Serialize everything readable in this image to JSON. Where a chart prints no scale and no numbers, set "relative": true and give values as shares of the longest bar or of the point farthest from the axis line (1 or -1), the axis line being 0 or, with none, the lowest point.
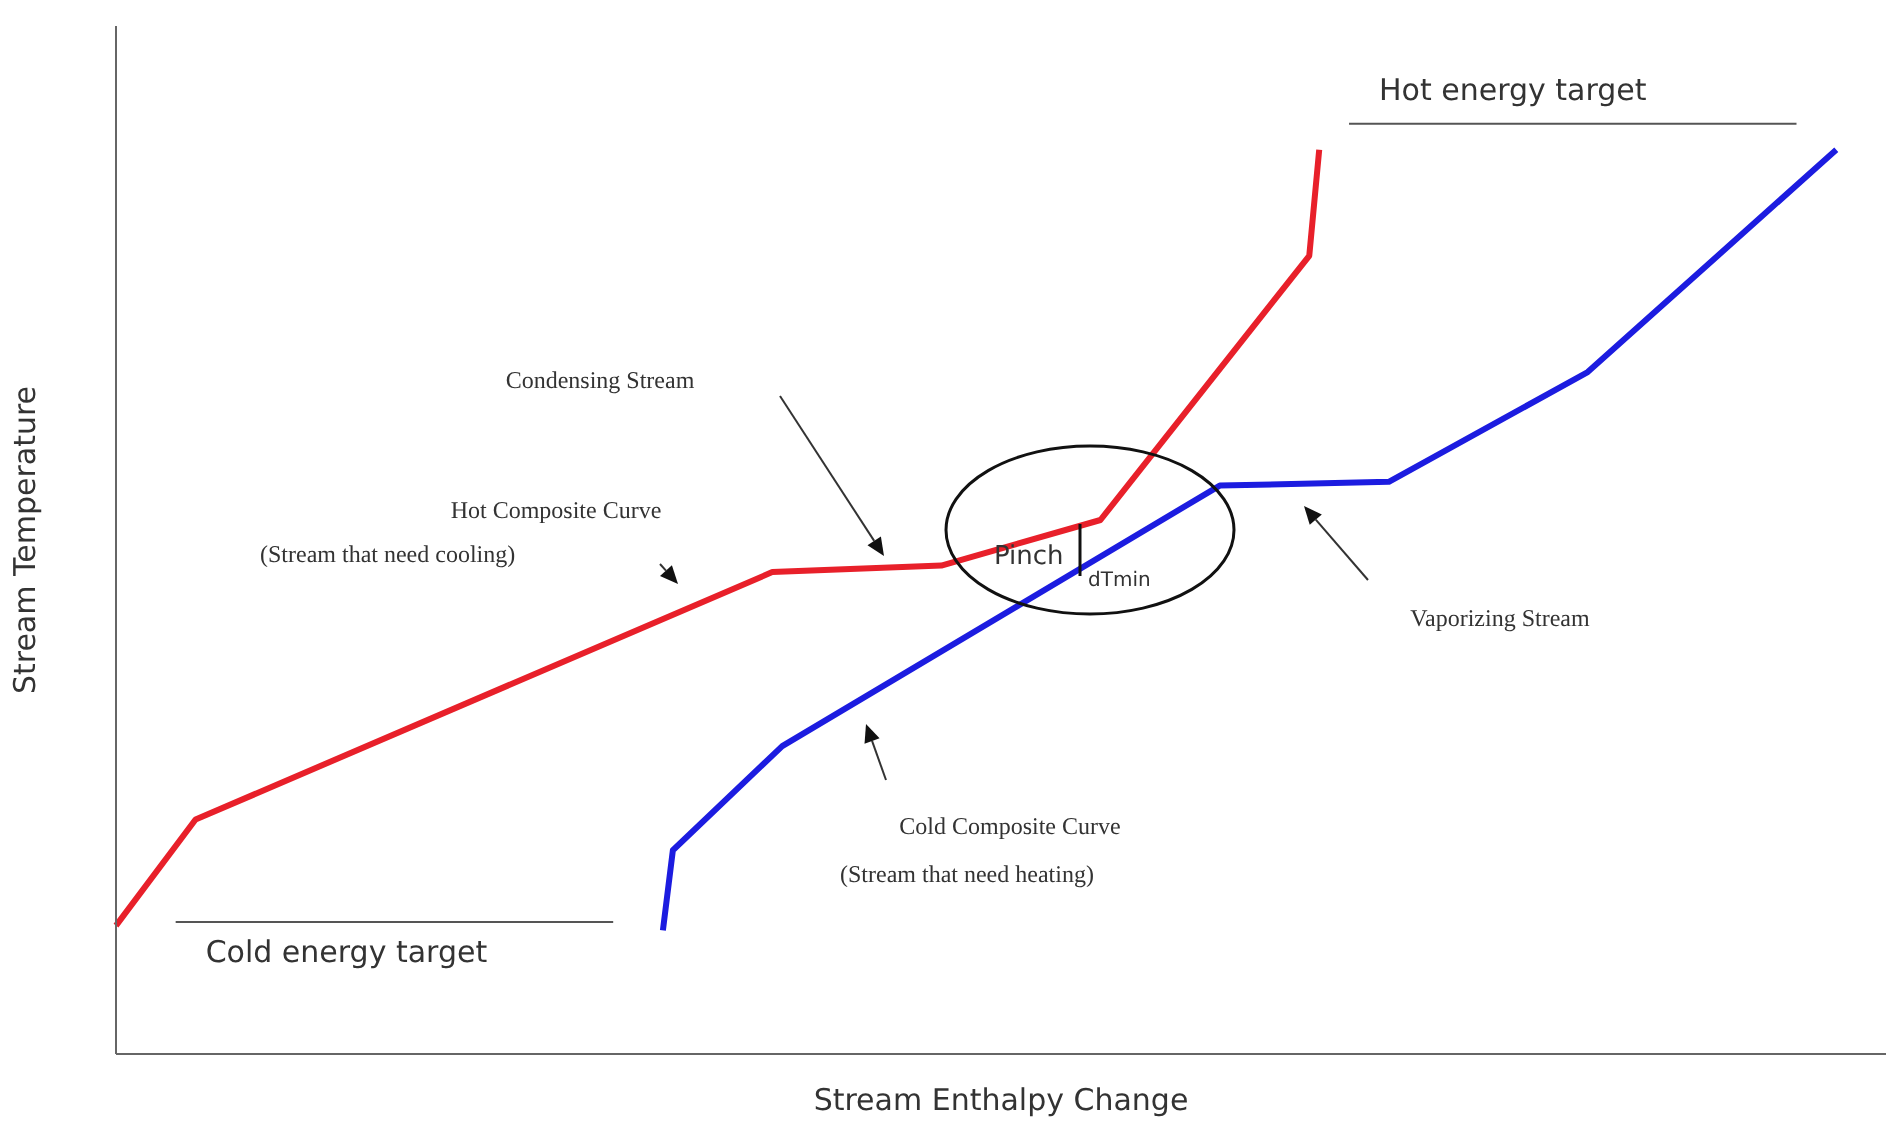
{
  "chart_data": {
    "type": "line",
    "xlabel": "Stream Enthalpy Change",
    "ylabel": "Stream Temperature",
    "relative": true,
    "categories": [
      null,
      null,
      null,
      null,
      null,
      null,
      null,
      null,
      null,
      null,
      null,
      null,
      null,
      null,
      null,
      null,
      null,
      null,
      null,
      null,
      null,
      null,
      null,
      null,
      null,
      null,
      null,
      null,
      null,
      null,
      null,
      null,
      null,
      null,
      null,
      null,
      null,
      null,
      null,
      null,
      null,
      null,
      null,
      null,
      null,
      null,
      null,
      null,
      null,
      null,
      null,
      null,
      null,
      null,
      null,
      null,
      null,
      null,
      null,
      null,
      null,
      null,
      null,
      null,
      null,
      null,
      null,
      null,
      null,
      null,
      null,
      null,
      null,
      null,
      null,
      null,
      null,
      null,
      null,
      null,
      null,
      null,
      null,
      null,
      null,
      null,
      null,
      null,
      null,
      null,
      null,
      null,
      null,
      null,
      null,
      null,
      null,
      null,
      null,
      null,
      null,
      null,
      null,
      null,
      null,
      null,
      null,
      null,
      null,
      null,
      null,
      null,
      null,
      null,
      null,
      null,
      null,
      null,
      null,
      null,
      null,
      null,
      null,
      null,
      null,
      null,
      null,
      null,
      null,
      null,
      null,
      null,
      null,
      null,
      null,
      null,
      null,
      null,
      null,
      null,
      null,
      null,
      null,
      null,
      null,
      null,
      null,
      null,
      null,
      null,
      null,
      null,
      null,
      null,
      null,
      null,
      null,
      null,
      null,
      null,
      null,
      null,
      null,
      null,
      null,
      null,
      null,
      null,
      null,
      null,
      null,
      null,
      null,
      null,
      null,
      null,
      null,
      null,
      null
    ],
    "series": [
      {
        "color": "#e8202a",
        "values": [
          0.138,
          null,
          null,
          null,
          null,
          null,
          null,
          null,
          0.252,
          null,
          null,
          null,
          null,
          null,
          null,
          null,
          null,
          null,
          null,
          null,
          null,
          null,
          null,
          null,
          null,
          null,
          null,
          null,
          null,
          null,
          null,
          null,
          null,
          null,
          null,
          null,
          null,
          null,
          null,
          null,
          null,
          null,
          null,
          null,
          null,
          null,
          null,
          null,
          null,
          null,
          null,
          null,
          null,
          null,
          null,
          null,
          null,
          null,
          null,
          null,
          null,
          null,
          null,
          null,
          null,
          null,
          0.518,
          null,
          null,
          null,
          null,
          null,
          null,
          null,
          null,
          null,
          null,
          null,
          null,
          null,
          null,
          null,
          null,
          0.525,
          null,
          null,
          null,
          null,
          null,
          null,
          null,
          null,
          null,
          null,
          null,
          null,
          null,
          null,
          null,
          0.574,
          null,
          null,
          null,
          null,
          null,
          null,
          null,
          null,
          null,
          null,
          null,
          null,
          null,
          null,
          null,
          null,
          null,
          null,
          null,
          null,
          0.858,
          0.972,
          null,
          null,
          null,
          null,
          null,
          null,
          null,
          null,
          null,
          null,
          null,
          null,
          null,
          null,
          null,
          null,
          null,
          null,
          null,
          null,
          null,
          null,
          null,
          null,
          null,
          null,
          null,
          null,
          null,
          null,
          null,
          null,
          null,
          null,
          null,
          null,
          null,
          null,
          null,
          null,
          null,
          null,
          null,
          null,
          null,
          null,
          null,
          null,
          null,
          null,
          null,
          null,
          null,
          null,
          null,
          null,
          null
        ]
      },
      {
        "color": "#1c1ce0",
        "values": [
          null,
          null,
          null,
          null,
          null,
          null,
          null,
          null,
          null,
          null,
          null,
          null,
          null,
          null,
          null,
          null,
          null,
          null,
          null,
          null,
          null,
          null,
          null,
          null,
          null,
          null,
          null,
          null,
          null,
          null,
          null,
          null,
          null,
          null,
          null,
          null,
          null,
          null,
          null,
          null,
          null,
          null,
          null,
          null,
          null,
          null,
          null,
          null,
          null,
          null,
          null,
          null,
          null,
          null,
          null,
          0.133,
          0.219,
          null,
          null,
          null,
          null,
          null,
          null,
          null,
          null,
          null,
          null,
          0.331,
          null,
          null,
          null,
          null,
          null,
          null,
          null,
          null,
          null,
          null,
          null,
          null,
          null,
          null,
          null,
          null,
          null,
          null,
          null,
          null,
          null,
          null,
          null,
          null,
          null,
          null,
          null,
          null,
          null,
          null,
          null,
          null,
          null,
          null,
          null,
          null,
          null,
          null,
          null,
          null,
          null,
          null,
          null,
          0.611,
          null,
          null,
          null,
          null,
          null,
          null,
          null,
          null,
          null,
          null,
          null,
          null,
          null,
          null,
          null,
          null,
          0.615,
          null,
          null,
          null,
          null,
          null,
          null,
          null,
          null,
          null,
          null,
          null,
          null,
          null,
          null,
          null,
          null,
          null,
          null,
          null,
          0.733,
          null,
          null,
          null,
          null,
          null,
          null,
          null,
          null,
          null,
          null,
          null,
          null,
          null,
          null,
          null,
          null,
          null,
          null,
          null,
          null,
          null,
          null,
          null,
          null,
          0.972,
          null,
          null,
          null,
          null,
          null
        ]
      },
      {
        "name": "Hot energy target",
        "color": "#555555",
        "values": [
          null,
          null,
          null,
          null,
          null,
          null,
          null,
          null,
          null,
          null,
          null,
          null,
          null,
          null,
          null,
          null,
          null,
          null,
          null,
          null,
          null,
          null,
          null,
          null,
          null,
          null,
          null,
          null,
          null,
          null,
          null,
          null,
          null,
          null,
          null,
          null,
          null,
          null,
          null,
          null,
          null,
          null,
          null,
          null,
          null,
          null,
          null,
          null,
          null,
          null,
          null,
          null,
          null,
          null,
          null,
          null,
          null,
          null,
          null,
          null,
          null,
          null,
          null,
          null,
          null,
          null,
          null,
          null,
          null,
          null,
          null,
          null,
          null,
          null,
          null,
          null,
          null,
          null,
          null,
          null,
          null,
          null,
          null,
          null,
          null,
          null,
          null,
          null,
          null,
          null,
          null,
          null,
          null,
          null,
          null,
          null,
          null,
          null,
          null,
          null,
          null,
          null,
          null,
          null,
          null,
          null,
          null,
          null,
          null,
          null,
          null,
          null,
          null,
          null,
          null,
          null,
          null,
          null,
          null,
          null,
          null,
          null,
          null,
          null,
          1,
          null,
          null,
          null,
          null,
          null,
          null,
          null,
          null,
          null,
          null,
          null,
          null,
          null,
          null,
          null,
          null,
          null,
          null,
          null,
          null,
          null,
          null,
          null,
          null,
          null,
          null,
          null,
          null,
          null,
          null,
          null,
          null,
          null,
          null,
          null,
          null,
          null,
          null,
          null,
          null,
          null,
          null,
          null,
          null,
          1,
          null,
          null,
          null,
          null,
          null,
          null,
          null,
          null,
          null
        ]
      },
      {
        "name": "Cold energy target",
        "color": "#555555",
        "values": [
          null,
          null,
          null,
          null,
          null,
          null,
          0.142,
          null,
          null,
          null,
          null,
          null,
          null,
          null,
          null,
          null,
          null,
          null,
          null,
          null,
          null,
          null,
          null,
          null,
          null,
          null,
          null,
          null,
          null,
          null,
          null,
          null,
          null,
          null,
          null,
          null,
          null,
          null,
          null,
          null,
          null,
          null,
          null,
          null,
          null,
          null,
          null,
          null,
          null,
          null,
          0.142,
          null,
          null,
          null,
          null,
          null,
          null,
          null,
          null,
          null,
          null,
          null,
          null,
          null,
          null,
          null,
          null,
          null,
          null,
          null,
          null,
          null,
          null,
          null,
          null,
          null,
          null,
          null,
          null,
          null,
          null,
          null,
          null,
          null,
          null,
          null,
          null,
          null,
          null,
          null,
          null,
          null,
          null,
          null,
          null,
          null,
          null,
          null,
          null,
          null,
          null,
          null,
          null,
          null,
          null,
          null,
          null,
          null,
          null,
          null,
          null,
          null,
          null,
          null,
          null,
          null,
          null,
          null,
          null,
          null,
          null,
          null,
          null,
          null,
          null,
          null,
          null,
          null,
          null,
          null,
          null,
          null,
          null,
          null,
          null,
          null,
          null,
          null,
          null,
          null,
          null,
          null,
          null,
          null,
          null,
          null,
          null,
          null,
          null,
          null,
          null,
          null,
          null,
          null,
          null,
          null,
          null,
          null,
          null,
          null,
          null,
          null,
          null,
          null,
          null,
          null,
          null,
          null,
          null,
          null,
          null,
          null,
          null,
          null,
          null,
          null,
          null,
          null,
          null
        ]
      }
    ],
    "annotations": [
      "Condensing Stream",
      "Hot Composite Curve",
      "(Stream that need cooling)",
      "Pinch",
      "dTmin",
      "Cold Composite Curve",
      "(Stream that need heating)",
      "Vaporizing Stream"
    ]
  }
}
